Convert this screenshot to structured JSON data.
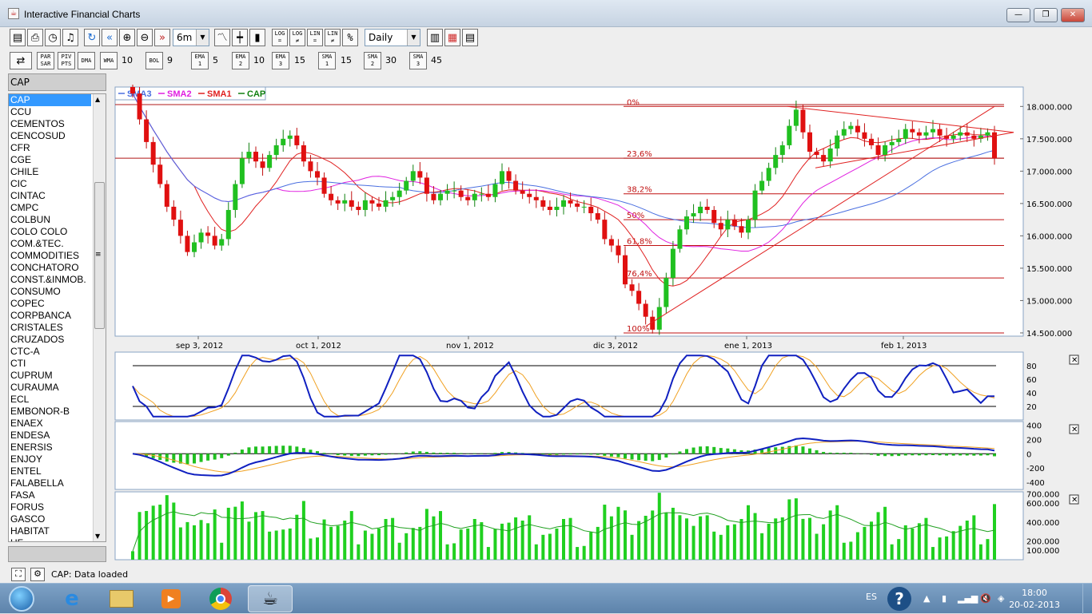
{
  "window": {
    "title": "Interactive Financial Charts"
  },
  "toolbar": {
    "period": "6m",
    "interval": "Daily",
    "log_eq": "LOG\n=",
    "log_ne": "LOG\n≠",
    "lin_eq": "LIN\n=",
    "lin_ne": "LIN\n≠",
    "pct": "%",
    "par_sar": "PAR\nSAR",
    "piv_pts": "PIV\nPTS",
    "dma": "DMA",
    "wma": "WMA",
    "wma_n": "10",
    "bol": "BOL",
    "bol_n": "9",
    "ema1": "EMA\n1",
    "ema1_n": "5",
    "ema2": "EMA\n2",
    "ema2_n": "10",
    "ema3": "EMA\n3",
    "ema3_n": "15",
    "sma1": "SMA\n1",
    "sma1_n": "15",
    "sma2": "SMA\n2",
    "sma2_n": "30",
    "sma3": "SMA\n3",
    "sma3_n": "45"
  },
  "sidebar": {
    "current": "CAP",
    "items": [
      "CAP",
      "CCU",
      "CEMENTOS",
      "CENCOSUD",
      "CFR",
      "CGE",
      "CHILE",
      "CIC",
      "CINTAC",
      "CMPC",
      "COLBUN",
      "COLO COLO",
      "COM.&TEC.",
      "COMMODITIES",
      "CONCHATORO",
      "CONST.&INMOB.",
      "CONSUMO",
      "COPEC",
      "CORPBANCA",
      "CRISTALES",
      "CRUZADOS",
      "CTC-A",
      "CTI",
      "CUPRUM",
      "CURAUMA",
      "ECL",
      "EMBONOR-B",
      "ENAEX",
      "ENDESA",
      "ENERSIS",
      "ENJOY",
      "ENTEL",
      "FALABELLA",
      "FASA",
      "FORUS",
      "GASCO",
      "HABITAT",
      "HF"
    ]
  },
  "chart_data": [
    {
      "type": "candlestick",
      "legend": [
        {
          "name": "SMA3",
          "color": "#4a6fe0"
        },
        {
          "name": "SMA2",
          "color": "#e020e0"
        },
        {
          "name": "SMA1",
          "color": "#e02020"
        },
        {
          "name": "CAP",
          "color": "#108010"
        }
      ],
      "x_ticks": [
        "sep 3, 2012",
        "oct 1, 2012",
        "nov 1, 2012",
        "dic 3, 2012",
        "ene 1, 2013",
        "feb 1, 2013"
      ],
      "y_ticks": [
        "18.000.000",
        "17.500.000",
        "17.000.000",
        "16.500.000",
        "16.000.000",
        "15.500.000",
        "15.000.000",
        "14.500.000"
      ],
      "ylim": [
        14450000,
        18300000
      ],
      "fibonacci": [
        {
          "label": "0%",
          "value": 18000000
        },
        {
          "label": "23,6%",
          "value": 17200000
        },
        {
          "label": "38,2%",
          "value": 16650000
        },
        {
          "label": "50%",
          "value": 16250000
        },
        {
          "label": "61,8%",
          "value": 15850000
        },
        {
          "label": "76,4%",
          "value": 15350000
        },
        {
          "label": "100%",
          "value": 14500000
        }
      ],
      "close": [
        18200000,
        17800000,
        17450000,
        17100000,
        16800000,
        16450000,
        16250000,
        16000000,
        15750000,
        15900000,
        16050000,
        16000000,
        15850000,
        15950000,
        16400000,
        16800000,
        17200000,
        17300000,
        17150000,
        17050000,
        17250000,
        17400000,
        17500000,
        17550000,
        17400000,
        17150000,
        17000000,
        16900000,
        16650000,
        16550000,
        16500000,
        16550000,
        16450000,
        16400000,
        16550000,
        16500000,
        16450000,
        16550000,
        16600000,
        16700000,
        16850000,
        17000000,
        16900000,
        16650000,
        16550000,
        16650000,
        16700000,
        16700000,
        16600000,
        16550000,
        16650000,
        16650000,
        16600000,
        16800000,
        17000000,
        16850000,
        16700000,
        16650000,
        16600000,
        16550000,
        16450000,
        16400000,
        16450000,
        16550000,
        16500000,
        16450000,
        16450000,
        16350000,
        16250000,
        15950000,
        15850000,
        15700000,
        15250000,
        15150000,
        14950000,
        14750000,
        14550000,
        14900000,
        15350000,
        15800000,
        16100000,
        16300000,
        16350000,
        16450000,
        16400000,
        16200000,
        16100000,
        16250000,
        16150000,
        16050000,
        16250000,
        16700000,
        16850000,
        17050000,
        17250000,
        17400000,
        17700000,
        17950000,
        17600000,
        17300000,
        17250000,
        17150000,
        17350000,
        17550000,
        17650000,
        17700000,
        17600000,
        17500000,
        17400000,
        17250000,
        17400000,
        17450000,
        17500000,
        17650000,
        17600000,
        17550000,
        17600000,
        17650000,
        17550000,
        17500000,
        17550000,
        17600000,
        17550000,
        17500000,
        17550000,
        17600000,
        17200000
      ]
    },
    {
      "type": "line",
      "name": "stochastic",
      "y_ticks": [
        "80",
        "60",
        "40",
        "20"
      ],
      "ylim": [
        0,
        100
      ]
    },
    {
      "type": "bar+line",
      "name": "macd",
      "y_ticks": [
        "400",
        "200",
        "0",
        "-200",
        "-400"
      ],
      "ylim": [
        -500,
        450
      ]
    },
    {
      "type": "bar",
      "name": "volume",
      "y_ticks": [
        "700.000",
        "600.000",
        "400.000",
        "200.000",
        "100.000"
      ],
      "ylim": [
        0,
        720000
      ]
    }
  ],
  "status": {
    "message": "CAP: Data loaded"
  },
  "taskbar": {
    "lang": "ES",
    "time": "18:00",
    "date": "20-02-2013"
  }
}
